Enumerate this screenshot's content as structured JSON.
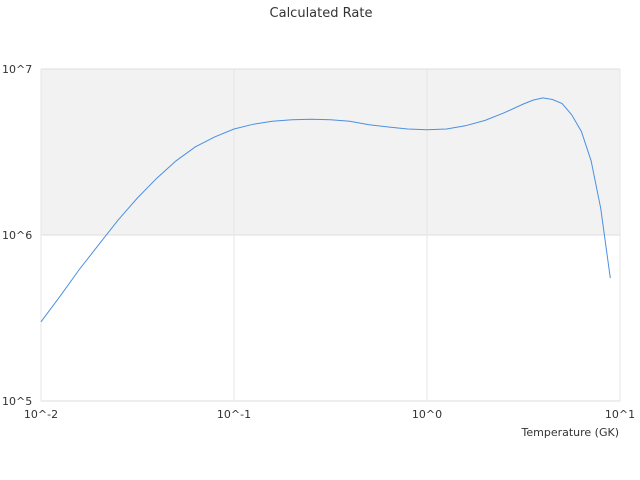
{
  "chart_data": {
    "type": "line",
    "title": "Calculated Rate",
    "xlabel": "Temperature (GK)",
    "ylabel": "",
    "x_scale": "log",
    "y_scale": "log",
    "xlim": [
      0.01,
      10
    ],
    "ylim": [
      100000,
      10000000
    ],
    "grid": true,
    "legend": "none",
    "x_ticks": [
      {
        "value": 0.01,
        "label": "10^-2"
      },
      {
        "value": 0.1,
        "label": "10^-1"
      },
      {
        "value": 1,
        "label": "10^0"
      },
      {
        "value": 10,
        "label": "10^1"
      }
    ],
    "y_ticks": [
      {
        "value": 100000,
        "label": "10^5"
      },
      {
        "value": 1000000,
        "label": "10^6"
      },
      {
        "value": 10000000,
        "label": "10^7"
      }
    ],
    "series": [
      {
        "name": "",
        "color": "#4a90e2",
        "x": [
          0.01,
          0.0126,
          0.0158,
          0.02,
          0.0251,
          0.0316,
          0.0398,
          0.0501,
          0.0631,
          0.0794,
          0.1,
          0.126,
          0.158,
          0.2,
          0.251,
          0.316,
          0.398,
          0.501,
          0.631,
          0.794,
          1.0,
          1.26,
          1.58,
          2.0,
          2.51,
          3.16,
          3.55,
          3.98,
          4.47,
          5.01,
          5.62,
          6.31,
          7.08,
          7.94,
          8.91
        ],
        "y": [
          300000,
          430000,
          620000,
          880000,
          1230000,
          1670000,
          2200000,
          2800000,
          3400000,
          3900000,
          4350000,
          4650000,
          4850000,
          4950000,
          4980000,
          4950000,
          4850000,
          4620000,
          4470000,
          4350000,
          4300000,
          4350000,
          4550000,
          4900000,
          5450000,
          6150000,
          6500000,
          6700000,
          6550000,
          6200000,
          5300000,
          4200000,
          2800000,
          1450000,
          550000
        ]
      }
    ]
  }
}
